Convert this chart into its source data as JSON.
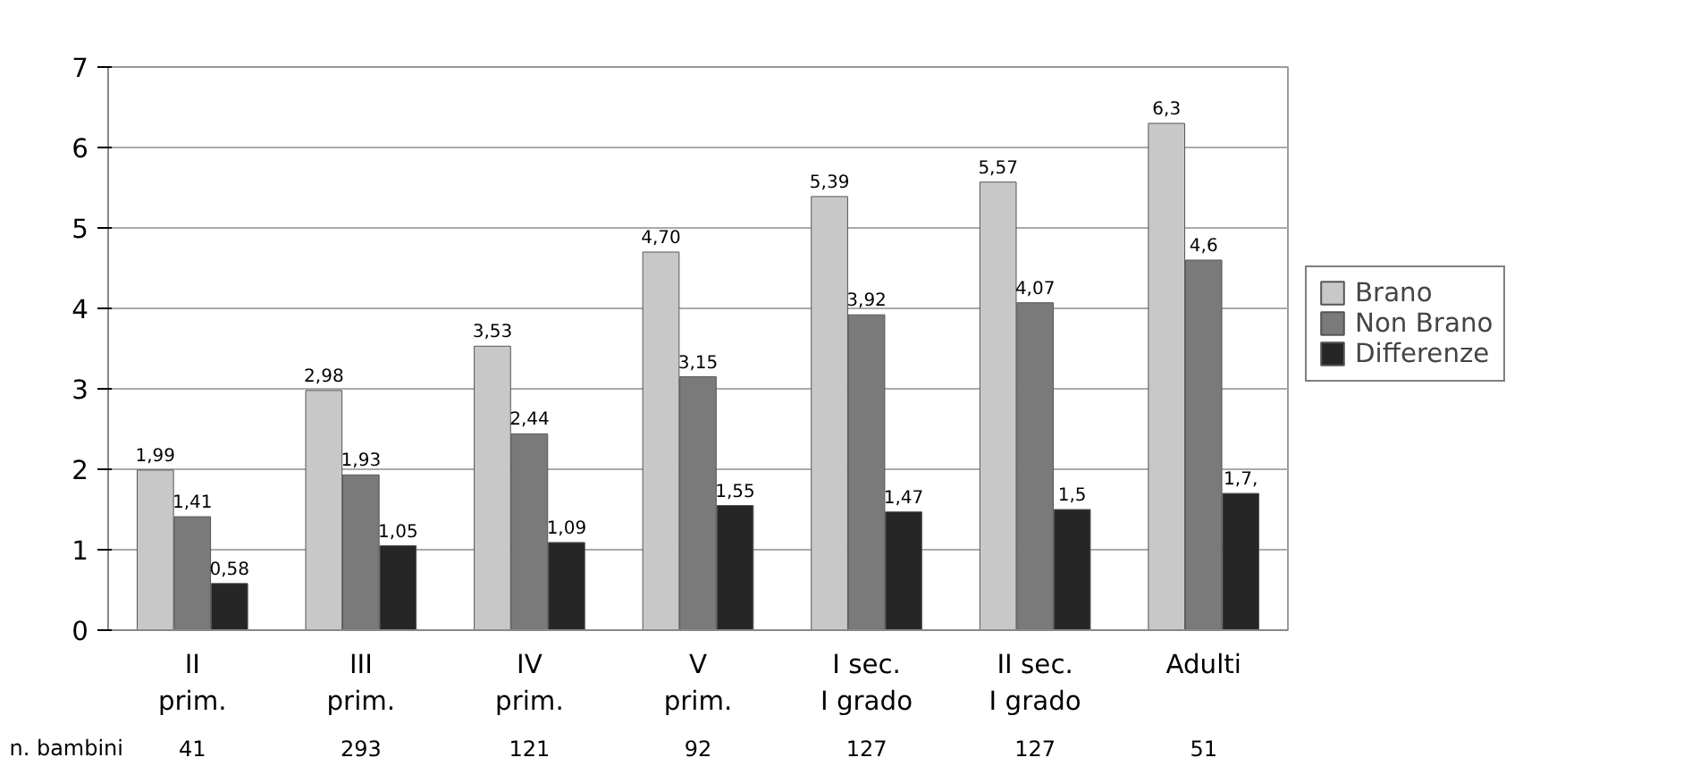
{
  "chart_data": {
    "type": "bar",
    "categories": [
      "II\nprim.",
      "III\nprim.",
      "IV\nprim.",
      "V\nprim.",
      "I sec.\nI grado",
      "II sec.\nI grado",
      "Adulti"
    ],
    "series": [
      {
        "name": "Brano",
        "color": "#c8c8c8",
        "values": [
          1.99,
          2.98,
          3.53,
          4.7,
          5.39,
          5.57,
          6.3
        ],
        "value_labels": [
          "1,99",
          "2,98",
          "3,53",
          "4,70",
          "5,39",
          "5,57",
          "6,3"
        ]
      },
      {
        "name": "Non Brano",
        "color": "#7a7a7a",
        "values": [
          1.41,
          1.93,
          2.44,
          3.15,
          3.92,
          4.07,
          4.6
        ],
        "value_labels": [
          "1,41",
          "1,93",
          "2,44",
          "3,15",
          "3,92",
          "4,07",
          "4,6"
        ]
      },
      {
        "name": "Differenze",
        "color": "#262626",
        "values": [
          0.58,
          1.05,
          1.09,
          1.55,
          1.47,
          1.5,
          1.7
        ],
        "value_labels": [
          "0,58",
          "1,05",
          "1,09",
          "1,55",
          "1,47",
          "1,5",
          "1,7,"
        ]
      }
    ],
    "ylim": [
      0,
      7
    ],
    "yticks": [
      0,
      1,
      2,
      3,
      4,
      5,
      6,
      7
    ],
    "grid": "y",
    "legend": "right",
    "annotations": [
      "n. bambini",
      "41",
      "293",
      "121",
      "92",
      "127",
      "127",
      "51"
    ]
  }
}
